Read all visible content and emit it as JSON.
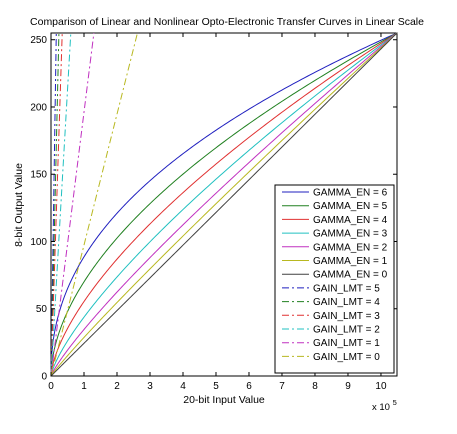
{
  "chart_data": {
    "type": "line",
    "title": "Comparison of Linear and Nonlinear Opto-Electronic Transfer Curves in Linear Scale",
    "xlabel": "20-bit Input Value",
    "ylabel": "8-bit Output Value",
    "x_multiplier": "x 10",
    "x_multiplier_exp": "5",
    "xlim": [
      0,
      1048575
    ],
    "ylim": [
      0,
      255
    ],
    "x_ticks": [
      0,
      100000,
      200000,
      300000,
      400000,
      500000,
      600000,
      700000,
      800000,
      900000,
      1000000
    ],
    "x_tick_labels": [
      "0",
      "1",
      "2",
      "3",
      "4",
      "5",
      "6",
      "7",
      "8",
      "9",
      "10"
    ],
    "y_ticks": [
      0,
      50,
      100,
      150,
      200,
      250
    ],
    "y_tick_labels": [
      "0",
      "50",
      "100",
      "150",
      "200",
      "250"
    ],
    "grid": false,
    "legend_position": "bottom-right",
    "series": [
      {
        "name": "GAMMA_EN = 6",
        "color": "#1f1fbf",
        "dash": "solid",
        "gamma": 0.45
      },
      {
        "name": "GAMMA_EN = 5",
        "color": "#208020",
        "dash": "solid",
        "gamma": 0.55
      },
      {
        "name": "GAMMA_EN = 4",
        "color": "#e03030",
        "dash": "solid",
        "gamma": 0.65
      },
      {
        "name": "GAMMA_EN = 3",
        "color": "#20c0c0",
        "dash": "solid",
        "gamma": 0.75
      },
      {
        "name": "GAMMA_EN = 2",
        "color": "#c030c0",
        "dash": "solid",
        "gamma": 0.85
      },
      {
        "name": "GAMMA_EN = 1",
        "color": "#b8b820",
        "dash": "solid",
        "gamma": 0.93
      },
      {
        "name": "GAMMA_EN = 0",
        "color": "#404040",
        "dash": "solid",
        "gamma": 1.0
      },
      {
        "name": "GAIN_LMT = 5",
        "color": "#1f1fbf",
        "dash": "dashdot",
        "x_at_top": 16000
      },
      {
        "name": "GAIN_LMT = 4",
        "color": "#208020",
        "dash": "dashdot",
        "x_at_top": 24000
      },
      {
        "name": "GAIN_LMT = 3",
        "color": "#e03030",
        "dash": "dashdot",
        "x_at_top": 34000
      },
      {
        "name": "GAIN_LMT = 2",
        "color": "#20c0c0",
        "dash": "dashdot",
        "x_at_top": 60000
      },
      {
        "name": "GAIN_LMT = 1",
        "color": "#c030c0",
        "dash": "dashdot",
        "x_at_top": 130000
      },
      {
        "name": "GAIN_LMT = 0",
        "color": "#b8b820",
        "dash": "dashdot",
        "x_at_top": 262000
      }
    ]
  }
}
